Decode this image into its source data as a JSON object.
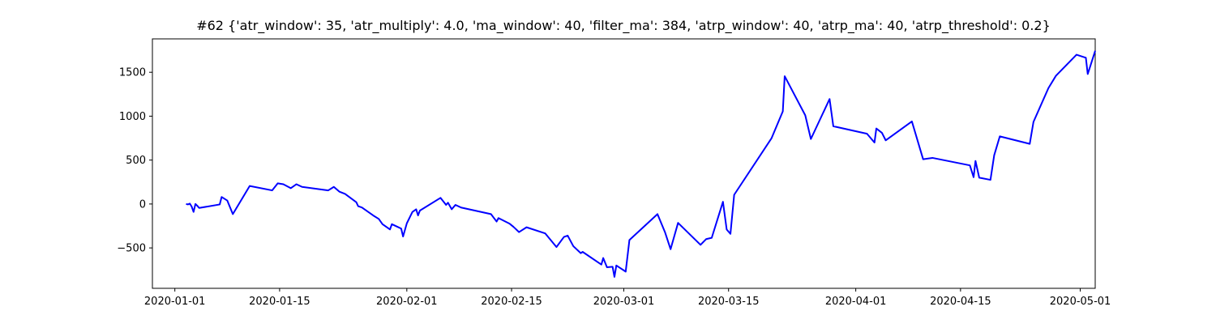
{
  "chart_data": {
    "type": "line",
    "title": "#62 {'atr_window': 35, 'atr_multiply': 4.0, 'ma_window': 40, 'filter_ma': 384, 'atrp_window': 40, 'atrp_ma': 40, 'atrp_threshold': 0.2}",
    "xlabel": "",
    "ylabel": "",
    "grid": false,
    "legend": "none",
    "x_type": "date",
    "xlim": [
      "2019-12-29",
      "2020-05-03"
    ],
    "ylim": [
      -960,
      1880
    ],
    "x_ticks": [
      "2020-01-01",
      "2020-01-15",
      "2020-02-01",
      "2020-02-15",
      "2020-03-01",
      "2020-03-15",
      "2020-04-01",
      "2020-04-15",
      "2020-05-01"
    ],
    "y_ticks": [
      -500,
      0,
      500,
      1000,
      1500
    ],
    "series": [
      {
        "color": "#0000ff",
        "points": [
          [
            "2020-01-02 12:00",
            0
          ],
          [
            "2020-01-02 18:00",
            -5
          ],
          [
            "2020-01-03 00:00",
            5
          ],
          [
            "2020-01-03 06:00",
            -30
          ],
          [
            "2020-01-03 12:00",
            -90
          ],
          [
            "2020-01-03 18:00",
            0
          ],
          [
            "2020-01-04 00:00",
            -20
          ],
          [
            "2020-01-04 06:00",
            -45
          ],
          [
            "2020-01-07 00:00",
            -5
          ],
          [
            "2020-01-07 06:00",
            80
          ],
          [
            "2020-01-08 00:00",
            40
          ],
          [
            "2020-01-08 18:00",
            -115
          ],
          [
            "2020-01-11 00:00",
            205
          ],
          [
            "2020-01-14 00:00",
            155
          ],
          [
            "2020-01-14 18:00",
            235
          ],
          [
            "2020-01-15 12:00",
            225
          ],
          [
            "2020-01-16 12:00",
            180
          ],
          [
            "2020-01-17 06:00",
            225
          ],
          [
            "2020-01-18 00:00",
            195
          ],
          [
            "2020-01-21 12:00",
            155
          ],
          [
            "2020-01-22 06:00",
            195
          ],
          [
            "2020-01-23 00:00",
            140
          ],
          [
            "2020-01-23 18:00",
            115
          ],
          [
            "2020-01-25 06:00",
            20
          ],
          [
            "2020-01-25 12:00",
            -25
          ],
          [
            "2020-01-26 00:00",
            -40
          ],
          [
            "2020-01-27 12:00",
            -130
          ],
          [
            "2020-01-28 06:00",
            -170
          ],
          [
            "2020-01-28 18:00",
            -230
          ],
          [
            "2020-01-29 18:00",
            -290
          ],
          [
            "2020-01-30 00:00",
            -230
          ],
          [
            "2020-01-30 18:00",
            -260
          ],
          [
            "2020-01-31 06:00",
            -280
          ],
          [
            "2020-01-31 12:00",
            -370
          ],
          [
            "2020-02-01 00:00",
            -220
          ],
          [
            "2020-02-01 18:00",
            -90
          ],
          [
            "2020-02-02 06:00",
            -60
          ],
          [
            "2020-02-02 12:00",
            -130
          ],
          [
            "2020-02-02 18:00",
            -75
          ],
          [
            "2020-02-05 12:00",
            70
          ],
          [
            "2020-02-06 06:00",
            -10
          ],
          [
            "2020-02-06 12:00",
            15
          ],
          [
            "2020-02-07 00:00",
            -60
          ],
          [
            "2020-02-07 12:00",
            -10
          ],
          [
            "2020-02-08 06:00",
            -40
          ],
          [
            "2020-02-12 06:00",
            -115
          ],
          [
            "2020-02-13 00:00",
            -200
          ],
          [
            "2020-02-13 06:00",
            -160
          ],
          [
            "2020-02-14 18:00",
            -225
          ],
          [
            "2020-02-15 06:00",
            -260
          ],
          [
            "2020-02-16 00:00",
            -320
          ],
          [
            "2020-02-17 00:00",
            -265
          ],
          [
            "2020-02-19 12:00",
            -335
          ],
          [
            "2020-02-21 00:00",
            -490
          ],
          [
            "2020-02-22 00:00",
            -375
          ],
          [
            "2020-02-22 12:00",
            -360
          ],
          [
            "2020-02-23 06:00",
            -480
          ],
          [
            "2020-02-24 06:00",
            -560
          ],
          [
            "2020-02-24 12:00",
            -545
          ],
          [
            "2020-02-27 00:00",
            -690
          ],
          [
            "2020-02-27 06:00",
            -615
          ],
          [
            "2020-02-27 18:00",
            -720
          ],
          [
            "2020-02-28 12:00",
            -715
          ],
          [
            "2020-02-28 18:00",
            -830
          ],
          [
            "2020-02-29 00:00",
            -700
          ],
          [
            "2020-03-01 06:00",
            -770
          ],
          [
            "2020-03-01 18:00",
            -410
          ],
          [
            "2020-03-05 12:00",
            -115
          ],
          [
            "2020-03-06 12:00",
            -320
          ],
          [
            "2020-03-07 06:00",
            -515
          ],
          [
            "2020-03-08 06:00",
            -215
          ],
          [
            "2020-03-11 06:00",
            -465
          ],
          [
            "2020-03-12 00:00",
            -400
          ],
          [
            "2020-03-12 18:00",
            -385
          ],
          [
            "2020-03-14 06:00",
            25
          ],
          [
            "2020-03-14 18:00",
            -290
          ],
          [
            "2020-03-15 06:00",
            -340
          ],
          [
            "2020-03-15 18:00",
            105
          ],
          [
            "2020-03-20 18:00",
            750
          ],
          [
            "2020-03-22 06:00",
            1055
          ],
          [
            "2020-03-22 12:00",
            1455
          ],
          [
            "2020-03-25 06:00",
            1010
          ],
          [
            "2020-03-26 00:00",
            740
          ],
          [
            "2020-03-28 12:00",
            1195
          ],
          [
            "2020-03-29 00:00",
            885
          ],
          [
            "2020-04-02 12:00",
            800
          ],
          [
            "2020-04-03 12:00",
            700
          ],
          [
            "2020-04-03 18:00",
            860
          ],
          [
            "2020-04-04 12:00",
            810
          ],
          [
            "2020-04-05 00:00",
            725
          ],
          [
            "2020-04-08 12:00",
            940
          ],
          [
            "2020-04-10 00:00",
            510
          ],
          [
            "2020-04-11 06:00",
            525
          ],
          [
            "2020-04-16 06:00",
            440
          ],
          [
            "2020-04-16 18:00",
            305
          ],
          [
            "2020-04-17 00:00",
            490
          ],
          [
            "2020-04-17 12:00",
            300
          ],
          [
            "2020-04-19 00:00",
            275
          ],
          [
            "2020-04-19 12:00",
            555
          ],
          [
            "2020-04-20 06:00",
            770
          ],
          [
            "2020-04-24 06:00",
            685
          ],
          [
            "2020-04-24 18:00",
            935
          ],
          [
            "2020-04-26 18:00",
            1320
          ],
          [
            "2020-04-27 18:00",
            1460
          ],
          [
            "2020-04-30 12:00",
            1700
          ],
          [
            "2020-05-01 18:00",
            1665
          ],
          [
            "2020-05-02 00:00",
            1480
          ],
          [
            "2020-05-02 06:00",
            1545
          ],
          [
            "2020-05-03 00:00",
            1745
          ]
        ]
      }
    ]
  }
}
